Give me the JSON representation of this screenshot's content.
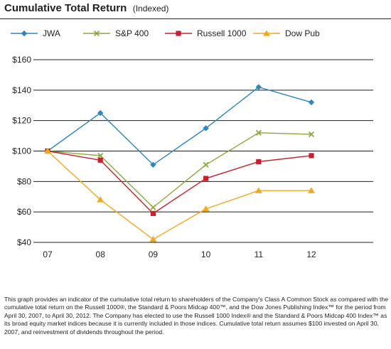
{
  "chart_data": {
    "type": "line",
    "title": "Cumulative Total Return",
    "subtitle": "(Indexed)",
    "xlabel": "",
    "ylabel": "",
    "categories": [
      "07",
      "08",
      "09",
      "10",
      "11",
      "12"
    ],
    "y_ticks": [
      "$40",
      "$60",
      "$80",
      "$100",
      "$120",
      "$140",
      "$160"
    ],
    "y_tick_values": [
      40,
      60,
      80,
      100,
      120,
      140,
      160
    ],
    "ylim": [
      40,
      160
    ],
    "grid": "horizontal",
    "legend_position": "top",
    "series": [
      {
        "name": "JWA",
        "marker": "diamond",
        "color": "#2e86c1",
        "values": [
          100,
          125,
          91,
          115,
          142,
          132
        ]
      },
      {
        "name": "S&P 400",
        "marker": "x",
        "color": "#8aa93b",
        "values": [
          100,
          97,
          63,
          91,
          112,
          111
        ]
      },
      {
        "name": "Russell 1000",
        "marker": "square",
        "color": "#c8202f",
        "values": [
          100,
          94,
          59,
          82,
          93,
          97
        ]
      },
      {
        "name": "Dow Pub",
        "marker": "triangle",
        "color": "#f4a81d",
        "values": [
          100,
          68,
          42,
          62,
          74,
          74
        ]
      }
    ]
  },
  "caption": "This graph provides an indicator of the cumulative total return to shareholders of the Company's Class A Common Stock as compared with the cumulative total return on the Russell 1000®, the Standard & Poors Midcap 400™, and the Dow Jones Publishing Index™ for the period from April 30, 2007, to April 30, 2012. The Company has elected to use the Russell 1000 Index® and the Standard & Poors Midcap 400 Index™ as its broad equity market indices because it is currently included in those indices. Cumulative total return assumes $100 invested on April 30, 2007, and reinvestment of dividends throughout the period."
}
